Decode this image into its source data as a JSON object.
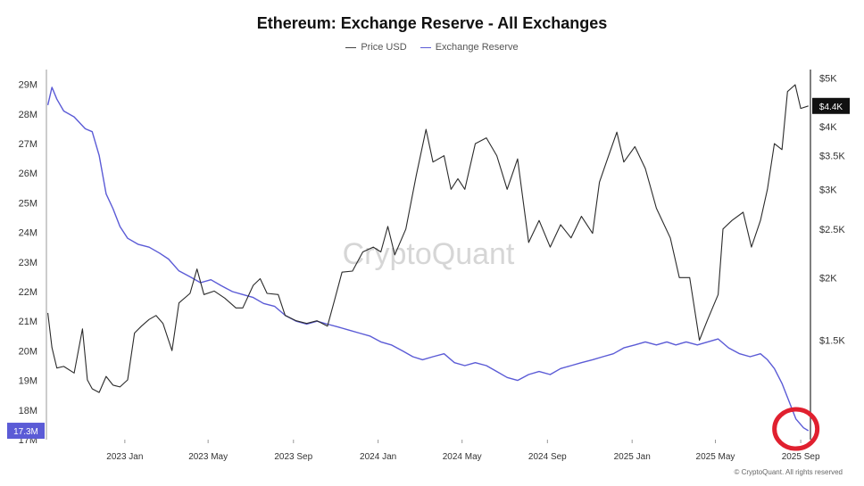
{
  "header": {
    "title": "Ethereum: Exchange Reserve - All Exchanges",
    "legend": [
      "Price USD",
      "Exchange Reserve"
    ]
  },
  "watermark": "CryptoQuant",
  "copyright": "© CryptoQuant. All rights reserved",
  "colors": {
    "price": "#2b2b2b",
    "reserve": "#5b5bd6",
    "reserve_badge": "#5b5bd6",
    "price_badge": "#111111",
    "highlight_circle": "#e0202f"
  },
  "chart_data": {
    "type": "line",
    "title": "Ethereum: Exchange Reserve - All Exchanges",
    "x_tick_labels": [
      "2023 Jan",
      "2023 May",
      "2023 Sep",
      "2024 Jan",
      "2024 May",
      "2024 Sep",
      "2025 Jan",
      "2025 May",
      "2025 Sep"
    ],
    "x_tick_dates": [
      "2023-01-01",
      "2023-05-01",
      "2023-09-01",
      "2024-01-01",
      "2024-05-01",
      "2024-09-01",
      "2025-01-01",
      "2025-05-01",
      "2025-09-01"
    ],
    "x_range": [
      "2022-09-10",
      "2025-09-15"
    ],
    "left_axis": {
      "series": "Exchange Reserve",
      "ylim": [
        17000000,
        29500000
      ],
      "ticks": [
        17000000,
        18000000,
        19000000,
        20000000,
        21000000,
        22000000,
        23000000,
        24000000,
        25000000,
        26000000,
        27000000,
        28000000,
        29000000
      ],
      "tick_labels": [
        "17M",
        "18M",
        "19M",
        "20M",
        "21M",
        "22M",
        "23M",
        "24M",
        "25M",
        "26M",
        "27M",
        "28M",
        "29M"
      ],
      "current_label": "17.3M",
      "current_value": 17300000
    },
    "right_axis": {
      "series": "Price USD",
      "scale": "log",
      "ylim": [
        950,
        5200
      ],
      "ticks": [
        1500,
        2000,
        2500,
        3000,
        3500,
        4000,
        5000
      ],
      "tick_labels": [
        "$1.5K",
        "$2K",
        "$2.5K",
        "$3K",
        "$3.5K",
        "$4K",
        "$5K"
      ],
      "current_label": "$4.4K",
      "current_value": 4400
    },
    "series": [
      {
        "name": "Exchange Reserve",
        "axis": "left",
        "points": [
          [
            "2022-09-12",
            28.3
          ],
          [
            "2022-09-18",
            28.9
          ],
          [
            "2022-09-25",
            28.5
          ],
          [
            "2022-10-05",
            28.1
          ],
          [
            "2022-10-20",
            27.9
          ],
          [
            "2022-11-05",
            27.5
          ],
          [
            "2022-11-15",
            27.4
          ],
          [
            "2022-11-25",
            26.6
          ],
          [
            "2022-12-05",
            25.3
          ],
          [
            "2022-12-15",
            24.8
          ],
          [
            "2022-12-25",
            24.2
          ],
          [
            "2023-01-05",
            23.8
          ],
          [
            "2023-01-20",
            23.6
          ],
          [
            "2023-02-05",
            23.5
          ],
          [
            "2023-02-20",
            23.3
          ],
          [
            "2023-03-05",
            23.1
          ],
          [
            "2023-03-20",
            22.7
          ],
          [
            "2023-04-05",
            22.5
          ],
          [
            "2023-04-20",
            22.3
          ],
          [
            "2023-05-05",
            22.4
          ],
          [
            "2023-05-20",
            22.2
          ],
          [
            "2023-06-05",
            22.0
          ],
          [
            "2023-06-20",
            21.9
          ],
          [
            "2023-07-05",
            21.8
          ],
          [
            "2023-07-20",
            21.6
          ],
          [
            "2023-08-05",
            21.5
          ],
          [
            "2023-08-20",
            21.2
          ],
          [
            "2023-09-05",
            21.0
          ],
          [
            "2023-09-20",
            20.9
          ],
          [
            "2023-10-05",
            21.0
          ],
          [
            "2023-10-20",
            20.9
          ],
          [
            "2023-11-05",
            20.8
          ],
          [
            "2023-11-20",
            20.7
          ],
          [
            "2023-12-05",
            20.6
          ],
          [
            "2023-12-20",
            20.5
          ],
          [
            "2024-01-05",
            20.3
          ],
          [
            "2024-01-20",
            20.2
          ],
          [
            "2024-02-05",
            20.0
          ],
          [
            "2024-02-20",
            19.8
          ],
          [
            "2024-03-05",
            19.7
          ],
          [
            "2024-03-20",
            19.8
          ],
          [
            "2024-04-05",
            19.9
          ],
          [
            "2024-04-20",
            19.6
          ],
          [
            "2024-05-05",
            19.5
          ],
          [
            "2024-05-20",
            19.6
          ],
          [
            "2024-06-05",
            19.5
          ],
          [
            "2024-06-20",
            19.3
          ],
          [
            "2024-07-05",
            19.1
          ],
          [
            "2024-07-20",
            19.0
          ],
          [
            "2024-08-05",
            19.2
          ],
          [
            "2024-08-20",
            19.3
          ],
          [
            "2024-09-05",
            19.2
          ],
          [
            "2024-09-20",
            19.4
          ],
          [
            "2024-10-05",
            19.5
          ],
          [
            "2024-10-20",
            19.6
          ],
          [
            "2024-11-05",
            19.7
          ],
          [
            "2024-11-20",
            19.8
          ],
          [
            "2024-12-05",
            19.9
          ],
          [
            "2024-12-20",
            20.1
          ],
          [
            "2025-01-05",
            20.2
          ],
          [
            "2025-01-20",
            20.3
          ],
          [
            "2025-02-05",
            20.2
          ],
          [
            "2025-02-20",
            20.3
          ],
          [
            "2025-03-05",
            20.2
          ],
          [
            "2025-03-20",
            20.3
          ],
          [
            "2025-04-05",
            20.2
          ],
          [
            "2025-04-20",
            20.3
          ],
          [
            "2025-05-05",
            20.4
          ],
          [
            "2025-05-20",
            20.1
          ],
          [
            "2025-06-05",
            19.9
          ],
          [
            "2025-06-20",
            19.8
          ],
          [
            "2025-07-05",
            19.9
          ],
          [
            "2025-07-15",
            19.7
          ],
          [
            "2025-07-25",
            19.4
          ],
          [
            "2025-08-05",
            18.9
          ],
          [
            "2025-08-15",
            18.3
          ],
          [
            "2025-08-25",
            17.7
          ],
          [
            "2025-09-05",
            17.4
          ],
          [
            "2025-09-12",
            17.3
          ]
        ]
      },
      {
        "name": "Price USD",
        "axis": "right",
        "points": [
          [
            "2022-09-12",
            1700
          ],
          [
            "2022-09-18",
            1450
          ],
          [
            "2022-09-25",
            1320
          ],
          [
            "2022-10-05",
            1330
          ],
          [
            "2022-10-20",
            1290
          ],
          [
            "2022-11-01",
            1580
          ],
          [
            "2022-11-08",
            1250
          ],
          [
            "2022-11-15",
            1200
          ],
          [
            "2022-11-25",
            1180
          ],
          [
            "2022-12-05",
            1270
          ],
          [
            "2022-12-15",
            1220
          ],
          [
            "2022-12-25",
            1210
          ],
          [
            "2023-01-05",
            1250
          ],
          [
            "2023-01-15",
            1550
          ],
          [
            "2023-01-25",
            1600
          ],
          [
            "2023-02-05",
            1650
          ],
          [
            "2023-02-15",
            1680
          ],
          [
            "2023-02-25",
            1620
          ],
          [
            "2023-03-10",
            1430
          ],
          [
            "2023-03-20",
            1780
          ],
          [
            "2023-04-05",
            1860
          ],
          [
            "2023-04-15",
            2080
          ],
          [
            "2023-04-25",
            1850
          ],
          [
            "2023-05-10",
            1880
          ],
          [
            "2023-05-25",
            1820
          ],
          [
            "2023-06-10",
            1740
          ],
          [
            "2023-06-20",
            1740
          ],
          [
            "2023-07-05",
            1930
          ],
          [
            "2023-07-15",
            1990
          ],
          [
            "2023-07-25",
            1860
          ],
          [
            "2023-08-10",
            1850
          ],
          [
            "2023-08-20",
            1680
          ],
          [
            "2023-09-05",
            1640
          ],
          [
            "2023-09-20",
            1620
          ],
          [
            "2023-10-05",
            1640
          ],
          [
            "2023-10-20",
            1600
          ],
          [
            "2023-10-30",
            1800
          ],
          [
            "2023-11-10",
            2050
          ],
          [
            "2023-11-25",
            2060
          ],
          [
            "2023-12-10",
            2250
          ],
          [
            "2023-12-25",
            2300
          ],
          [
            "2024-01-05",
            2250
          ],
          [
            "2024-01-15",
            2530
          ],
          [
            "2024-01-25",
            2220
          ],
          [
            "2024-02-10",
            2500
          ],
          [
            "2024-02-25",
            3200
          ],
          [
            "2024-03-10",
            3950
          ],
          [
            "2024-03-20",
            3400
          ],
          [
            "2024-04-05",
            3500
          ],
          [
            "2024-04-15",
            3000
          ],
          [
            "2024-04-25",
            3150
          ],
          [
            "2024-05-05",
            3000
          ],
          [
            "2024-05-20",
            3700
          ],
          [
            "2024-06-05",
            3800
          ],
          [
            "2024-06-20",
            3500
          ],
          [
            "2024-07-05",
            3000
          ],
          [
            "2024-07-20",
            3450
          ],
          [
            "2024-08-05",
            2350
          ],
          [
            "2024-08-20",
            2600
          ],
          [
            "2024-09-05",
            2300
          ],
          [
            "2024-09-20",
            2550
          ],
          [
            "2024-10-05",
            2400
          ],
          [
            "2024-10-20",
            2650
          ],
          [
            "2024-11-05",
            2450
          ],
          [
            "2024-11-15",
            3100
          ],
          [
            "2024-11-25",
            3400
          ],
          [
            "2024-12-10",
            3900
          ],
          [
            "2024-12-20",
            3400
          ],
          [
            "2025-01-05",
            3650
          ],
          [
            "2025-01-20",
            3300
          ],
          [
            "2025-02-05",
            2750
          ],
          [
            "2025-02-25",
            2400
          ],
          [
            "2025-03-10",
            2000
          ],
          [
            "2025-03-25",
            2000
          ],
          [
            "2025-04-08",
            1500
          ],
          [
            "2025-04-20",
            1650
          ],
          [
            "2025-05-05",
            1850
          ],
          [
            "2025-05-12",
            2500
          ],
          [
            "2025-05-25",
            2600
          ],
          [
            "2025-06-10",
            2700
          ],
          [
            "2025-06-22",
            2300
          ],
          [
            "2025-07-05",
            2600
          ],
          [
            "2025-07-15",
            3000
          ],
          [
            "2025-07-25",
            3700
          ],
          [
            "2025-08-05",
            3600
          ],
          [
            "2025-08-13",
            4700
          ],
          [
            "2025-08-24",
            4850
          ],
          [
            "2025-09-01",
            4350
          ],
          [
            "2025-09-12",
            4400
          ]
        ]
      }
    ]
  }
}
